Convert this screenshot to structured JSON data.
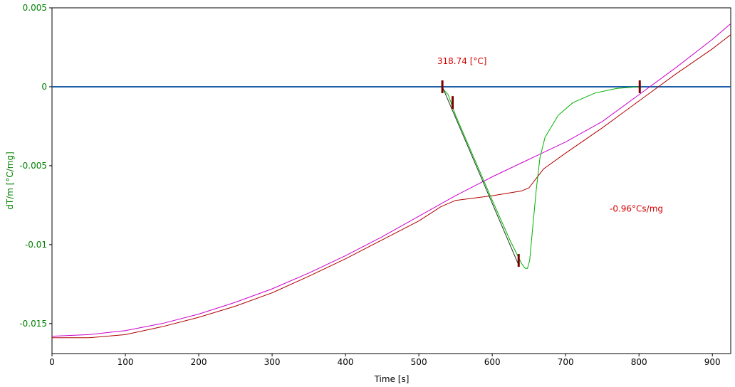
{
  "chart_data": {
    "type": "line",
    "xlabel": "Time [s]",
    "ylabel": "dT/m  [°C/mg]",
    "xlim": [
      0,
      925
    ],
    "ylim": [
      -0.0169,
      0.005
    ],
    "x_ticks": [
      {
        "value": 0,
        "label": "0"
      },
      {
        "value": 100,
        "label": "100"
      },
      {
        "value": 200,
        "label": "200"
      },
      {
        "value": 300,
        "label": "300"
      },
      {
        "value": 400,
        "label": "400"
      },
      {
        "value": 500,
        "label": "500"
      },
      {
        "value": 600,
        "label": "600"
      },
      {
        "value": 700,
        "label": "700"
      },
      {
        "value": 800,
        "label": "800"
      },
      {
        "value": 900,
        "label": "900"
      }
    ],
    "y_ticks": [
      {
        "value": 0.005,
        "label": "0.005"
      },
      {
        "value": 0,
        "label": "0"
      },
      {
        "value": -0.005,
        "label": "-0.005"
      },
      {
        "value": -0.01,
        "label": "-0.01"
      },
      {
        "value": -0.015,
        "label": "-0.015"
      }
    ],
    "grid": false,
    "colors": {
      "axis_label": "#008000",
      "annotation": "#d40000",
      "baseline": "#1f5fa8",
      "magenta": "#cc00cc",
      "red": "#b00000",
      "green": "#00b000",
      "tangent": "#1a3a1a",
      "marker": "#7a0000"
    },
    "series": [
      {
        "key": "baseline",
        "values": [
          [
            0,
            0
          ],
          [
            925,
            0
          ]
        ]
      },
      {
        "key": "magenta",
        "values": [
          [
            0,
            -0.0158
          ],
          [
            50,
            -0.0157
          ],
          [
            100,
            -0.01545
          ],
          [
            150,
            -0.015
          ],
          [
            200,
            -0.0144
          ],
          [
            250,
            -0.01365
          ],
          [
            300,
            -0.0128
          ],
          [
            350,
            -0.0118
          ],
          [
            400,
            -0.0107
          ],
          [
            450,
            -0.0095
          ],
          [
            500,
            -0.0082
          ],
          [
            550,
            -0.0069
          ],
          [
            600,
            -0.0057
          ],
          [
            650,
            -0.0046
          ],
          [
            700,
            -0.0035
          ],
          [
            750,
            -0.0022
          ],
          [
            800,
            -0.0005
          ],
          [
            850,
            0.0012
          ],
          [
            900,
            0.003
          ],
          [
            925,
            0.004
          ]
        ]
      },
      {
        "key": "red",
        "values": [
          [
            0,
            -0.0159
          ],
          [
            50,
            -0.0159
          ],
          [
            100,
            -0.0157
          ],
          [
            150,
            -0.0152
          ],
          [
            200,
            -0.0146
          ],
          [
            250,
            -0.0139
          ],
          [
            300,
            -0.01305
          ],
          [
            350,
            -0.012
          ],
          [
            400,
            -0.0109
          ],
          [
            450,
            -0.0097
          ],
          [
            500,
            -0.0085
          ],
          [
            530,
            -0.0076
          ],
          [
            550,
            -0.0072
          ],
          [
            600,
            -0.0069
          ],
          [
            640,
            -0.0066
          ],
          [
            650,
            -0.0064
          ],
          [
            670,
            -0.0052
          ],
          [
            700,
            -0.0042
          ],
          [
            750,
            -0.0026
          ],
          [
            800,
            -0.0009
          ],
          [
            850,
            0.0008
          ],
          [
            900,
            0.0024
          ],
          [
            925,
            0.0033
          ]
        ]
      },
      {
        "key": "green",
        "values": [
          [
            530,
            0
          ],
          [
            540,
            -0.0005
          ],
          [
            550,
            -0.0018
          ],
          [
            575,
            -0.0045
          ],
          [
            600,
            -0.0072
          ],
          [
            625,
            -0.0098
          ],
          [
            640,
            -0.0112
          ],
          [
            645,
            -0.0115
          ],
          [
            648,
            -0.0115
          ],
          [
            651,
            -0.011
          ],
          [
            655,
            -0.009
          ],
          [
            660,
            -0.0065
          ],
          [
            665,
            -0.0045
          ],
          [
            672,
            -0.0032
          ],
          [
            690,
            -0.0018
          ],
          [
            710,
            -0.001
          ],
          [
            740,
            -0.0004
          ],
          [
            770,
            -0.0001
          ],
          [
            800,
            0
          ]
        ]
      },
      {
        "key": "tangent",
        "values": [
          [
            532,
            0
          ],
          [
            636,
            -0.0113
          ]
        ]
      }
    ],
    "markers": [
      {
        "x": 532,
        "y": 0
      },
      {
        "x": 546,
        "y": -0.001
      },
      {
        "x": 636,
        "y": -0.011
      },
      {
        "x": 801,
        "y": 0
      }
    ],
    "annotations": [
      {
        "text": "318.74 [°C]",
        "x": 525,
        "y": 0.00145
      },
      {
        "text": "-0.96°Cs/mg",
        "x": 760,
        "y": -0.0079
      }
    ]
  }
}
